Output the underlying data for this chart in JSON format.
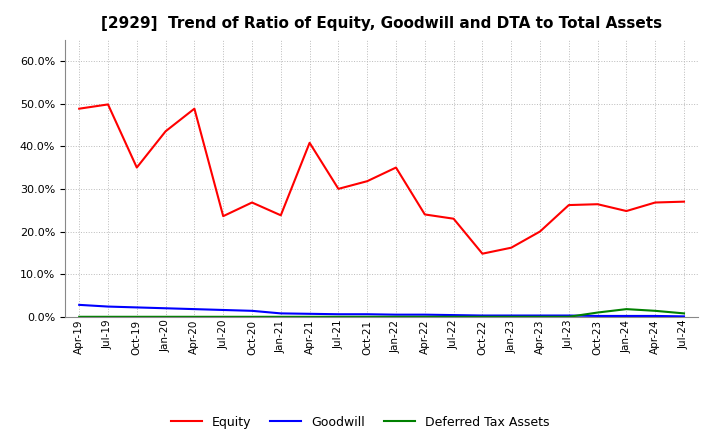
{
  "title": "[2929]  Trend of Ratio of Equity, Goodwill and DTA to Total Assets",
  "x_labels": [
    "Apr-19",
    "Jul-19",
    "Oct-19",
    "Jan-20",
    "Apr-20",
    "Jul-20",
    "Oct-20",
    "Jan-21",
    "Apr-21",
    "Jul-21",
    "Oct-21",
    "Jan-22",
    "Apr-22",
    "Jul-22",
    "Oct-22",
    "Jan-23",
    "Apr-23",
    "Jul-23",
    "Oct-23",
    "Jan-24",
    "Apr-24",
    "Jul-24"
  ],
  "equity": [
    0.488,
    0.498,
    0.35,
    0.435,
    0.488,
    0.236,
    0.268,
    0.238,
    0.408,
    0.3,
    0.318,
    0.35,
    0.24,
    0.23,
    0.148,
    0.162,
    0.2,
    0.262,
    0.264,
    0.248,
    0.268,
    0.27
  ],
  "goodwill": [
    0.028,
    0.024,
    0.022,
    0.02,
    0.018,
    0.016,
    0.014,
    0.008,
    0.007,
    0.006,
    0.006,
    0.005,
    0.005,
    0.004,
    0.003,
    0.003,
    0.003,
    0.003,
    0.002,
    0.002,
    0.002,
    0.001
  ],
  "dta": [
    0.0,
    0.0,
    0.0,
    0.0,
    0.0,
    0.0,
    0.0,
    0.0,
    0.0,
    0.0,
    0.0,
    0.0,
    0.0,
    0.0,
    0.0,
    0.0,
    0.0,
    0.0,
    0.01,
    0.018,
    0.014,
    0.008
  ],
  "equity_color": "#ff0000",
  "goodwill_color": "#0000ff",
  "dta_color": "#008000",
  "ylim": [
    0.0,
    0.65
  ],
  "yticks": [
    0.0,
    0.1,
    0.2,
    0.3,
    0.4,
    0.5,
    0.6
  ],
  "background_color": "#ffffff",
  "grid_color": "#bbbbbb",
  "title_fontsize": 11,
  "legend_labels": [
    "Equity",
    "Goodwill",
    "Deferred Tax Assets"
  ]
}
